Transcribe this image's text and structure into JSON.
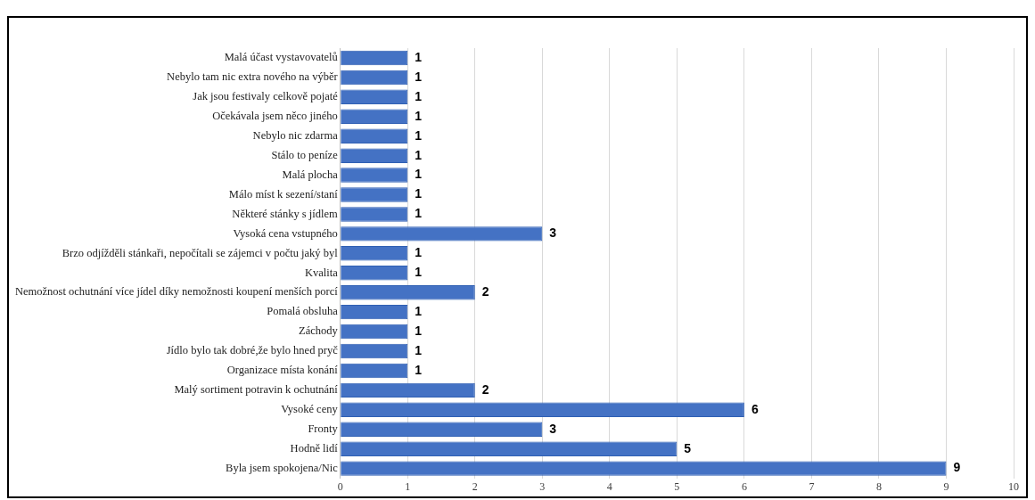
{
  "chart_data": {
    "type": "bar",
    "orientation": "horizontal",
    "categories": [
      "Malá účast vystavovatelů",
      "Nebylo tam nic extra nového na výběr",
      "Jak jsou festivaly celkově pojaté",
      "Očekávala jsem něco jiného",
      "Nebylo nic zdarma",
      "Stálo to peníze",
      "Malá plocha",
      "Málo míst k sezení/staní",
      "Některé stánky s jídlem",
      "Vysoká cena vstupného",
      "Brzo odjížděli stánkaři, nepočítali se zájemci v počtu jaký byl",
      "Kvalita",
      "Nemožnost ochutnání více jídel díky nemožnosti koupení menších porcí",
      "Pomalá obsluha",
      "Záchody",
      "Jídlo bylo tak dobré,že bylo hned pryč",
      "Organizace místa konání",
      "Malý sortiment potravin k ochutnání",
      "Vysoké ceny",
      "Fronty",
      "Hodně lidí",
      "Byla jsem spokojena/Nic"
    ],
    "values": [
      1,
      1,
      1,
      1,
      1,
      1,
      1,
      1,
      1,
      3,
      1,
      1,
      2,
      1,
      1,
      1,
      1,
      2,
      6,
      3,
      5,
      9
    ],
    "color": "#4472c4",
    "xlim": [
      0,
      10
    ],
    "xticks": [
      0,
      1,
      2,
      3,
      4,
      5,
      6,
      7,
      8,
      9,
      10
    ],
    "grid": "x",
    "data_labels": true,
    "legend": false
  }
}
